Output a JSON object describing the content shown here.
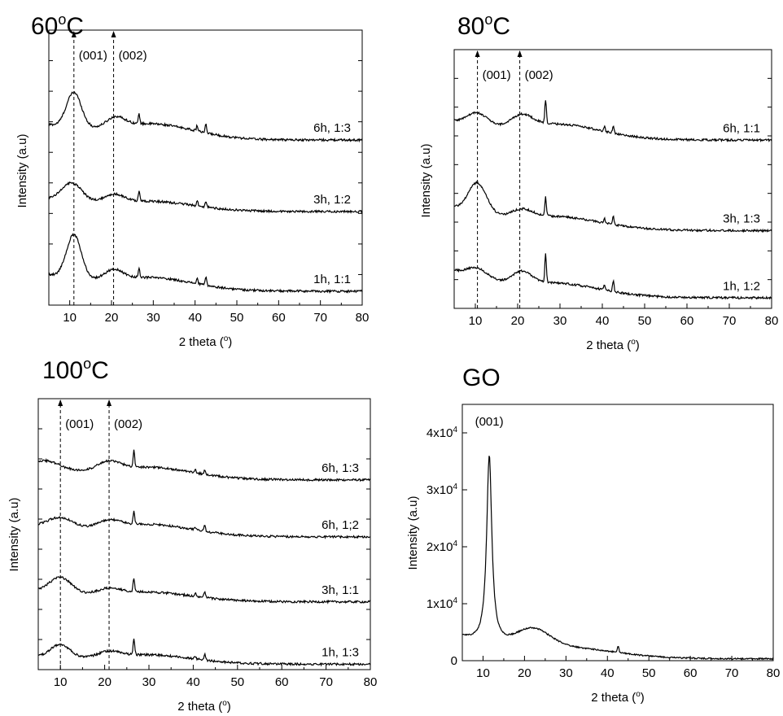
{
  "chart_data": [
    {
      "type": "line",
      "title": "60°C",
      "xlabel": "2 theta (°)",
      "ylabel": "Intensity (a.u)",
      "xlim": [
        5,
        80
      ],
      "xticks": [
        10,
        20,
        30,
        40,
        50,
        60,
        70,
        80
      ],
      "yticks": [],
      "grid": false,
      "reference_lines": [
        {
          "x": 11,
          "label": "(001)"
        },
        {
          "x": 20.5,
          "label": "(002)"
        }
      ],
      "series": [
        {
          "name": "6h, 1:3",
          "profile": {
            "base": 0.7,
            "p001": [
              11,
              0.13,
              1.8
            ],
            "p002": [
              21,
              0.035,
              2.2
            ],
            "broad": [
              30,
              0.05,
              10
            ],
            "sharp": [
              [
                26.6,
                0.035
              ],
              [
                40.5,
                0.02
              ],
              [
                42.6,
                0.03
              ]
            ],
            "floor": 0.6
          }
        },
        {
          "name": "3h, 1:2",
          "profile": {
            "base": 0.42,
            "p001": [
              10.5,
              0.07,
              2.5
            ],
            "p002": [
              20.5,
              0.03,
              2.5
            ],
            "broad": [
              30,
              0.03,
              10
            ],
            "sharp": [
              [
                26.6,
                0.035
              ],
              [
                40.5,
                0.02
              ],
              [
                42.6,
                0.02
              ]
            ],
            "floor": 0.34
          }
        },
        {
          "name": "1h, 1:1",
          "profile": {
            "base": 0.16,
            "p001": [
              11,
              0.16,
              1.8
            ],
            "p002": [
              20.5,
              0.035,
              2.2
            ],
            "broad": [
              30,
              0.04,
              10
            ],
            "sharp": [
              [
                26.6,
                0.035
              ],
              [
                40.5,
                0.02
              ],
              [
                42.6,
                0.03
              ]
            ],
            "floor": 0.05
          }
        }
      ]
    },
    {
      "type": "line",
      "title": "80°C",
      "xlabel": "2 theta (°)",
      "ylabel": "Intensity (a.u)",
      "xlim": [
        5,
        80
      ],
      "xticks": [
        10,
        20,
        30,
        40,
        50,
        60,
        70,
        80
      ],
      "yticks": [],
      "grid": false,
      "reference_lines": [
        {
          "x": 10.5,
          "label": "(001)"
        },
        {
          "x": 20.5,
          "label": "(002)"
        }
      ],
      "series": [
        {
          "name": "6h, 1:1",
          "profile": {
            "base": 0.78,
            "p001": [
              10.5,
              0.05,
              2.5
            ],
            "p002": [
              21,
              0.045,
              2.5
            ],
            "broad": [
              30,
              0.05,
              10
            ],
            "sharp": [
              [
                26.6,
                0.09
              ],
              [
                40.5,
                0.02
              ],
              [
                42.6,
                0.03
              ]
            ],
            "floor": 0.65
          }
        },
        {
          "name": "3h, 1:3",
          "profile": {
            "base": 0.46,
            "p001": [
              10.5,
              0.12,
              2.2
            ],
            "p002": [
              21,
              0.03,
              2.5
            ],
            "broad": [
              30,
              0.04,
              10
            ],
            "sharp": [
              [
                26.6,
                0.07
              ],
              [
                40.5,
                0.02
              ],
              [
                42.6,
                0.03
              ]
            ],
            "floor": 0.3
          }
        },
        {
          "name": "1h, 1:2",
          "profile": {
            "base": 0.23,
            "p001": [
              10.5,
              0.04,
              2.5
            ],
            "p002": [
              21,
              0.045,
              2.2
            ],
            "broad": [
              30,
              0.04,
              10
            ],
            "sharp": [
              [
                26.6,
                0.11
              ],
              [
                40.5,
                0.02
              ],
              [
                42.6,
                0.04
              ]
            ],
            "floor": 0.04
          }
        }
      ]
    },
    {
      "type": "line",
      "title": "100°C",
      "xlabel": "2 theta (°)",
      "ylabel": "Intensity (a.u)",
      "xlim": [
        5,
        80
      ],
      "xticks": [
        10,
        20,
        30,
        40,
        50,
        60,
        70,
        80
      ],
      "yticks": [],
      "grid": false,
      "reference_lines": [
        {
          "x": 10,
          "label": "(001)"
        },
        {
          "x": 21,
          "label": "(002)"
        }
      ],
      "series": [
        {
          "name": "6h, 1:3",
          "profile": {
            "base": 0.78,
            "p001": [
              7,
              0.03,
              3
            ],
            "p002": [
              21,
              0.03,
              2.5
            ],
            "broad": [
              30,
              0.04,
              10
            ],
            "sharp": [
              [
                26.6,
                0.06
              ],
              [
                40.5,
                0.01
              ],
              [
                42.6,
                0.015
              ]
            ],
            "floor": 0.7
          }
        },
        {
          "name": "6h, 1;2",
          "profile": {
            "base": 0.56,
            "p001": [
              10,
              0.04,
              2.8
            ],
            "p002": [
              21,
              0.025,
              2.5
            ],
            "broad": [
              30,
              0.04,
              10
            ],
            "sharp": [
              [
                26.6,
                0.05
              ],
              [
                40.5,
                0.01
              ],
              [
                42.6,
                0.02
              ]
            ],
            "floor": 0.49
          }
        },
        {
          "name": "3h, 1:1",
          "profile": {
            "base": 0.32,
            "p001": [
              10,
              0.06,
              2.5
            ],
            "p002": [
              21,
              0.02,
              2.5
            ],
            "broad": [
              30,
              0.03,
              10
            ],
            "sharp": [
              [
                26.6,
                0.05
              ],
              [
                40.5,
                0.01
              ],
              [
                42.6,
                0.02
              ]
            ],
            "floor": 0.25
          }
        },
        {
          "name": "1h, 1:3",
          "profile": {
            "base": 0.07,
            "p001": [
              10,
              0.05,
              2.2
            ],
            "p002": [
              21,
              0.02,
              2.5
            ],
            "broad": [
              30,
              0.03,
              10
            ],
            "sharp": [
              [
                26.6,
                0.06
              ],
              [
                40.5,
                0.01
              ],
              [
                42.6,
                0.02
              ]
            ],
            "floor": 0.02
          }
        }
      ]
    },
    {
      "type": "line",
      "title": "GO",
      "xlabel": "2 theta (°)",
      "ylabel": "Intensity (a.u)",
      "xlim": [
        5,
        80
      ],
      "ylim": [
        0,
        45000
      ],
      "xticks": [
        10,
        20,
        30,
        40,
        50,
        60,
        70,
        80
      ],
      "yticks": [
        {
          "value": 0,
          "mantissa": "0",
          "exp": ""
        },
        {
          "value": 10000,
          "mantissa": "1x10",
          "exp": "4"
        },
        {
          "value": 20000,
          "mantissa": "2x10",
          "exp": "4"
        },
        {
          "value": 30000,
          "mantissa": "3x10",
          "exp": "4"
        },
        {
          "value": 40000,
          "mantissa": "4x10",
          "exp": "4"
        }
      ],
      "grid": false,
      "reference_lines": [],
      "annotations": [
        {
          "x": 11.5,
          "label": "(001)"
        }
      ],
      "series": [
        {
          "name": "",
          "profile": {
            "base": 7000,
            "p001": [
              11.5,
              33000,
              0.75
            ],
            "p002": [
              22,
              3000,
              4
            ],
            "broad": [
              30,
              1500,
              12
            ],
            "sharp": [
              [
                42.6,
                1200
              ]
            ],
            "floor": 300,
            "lorentz": true
          }
        }
      ]
    }
  ]
}
